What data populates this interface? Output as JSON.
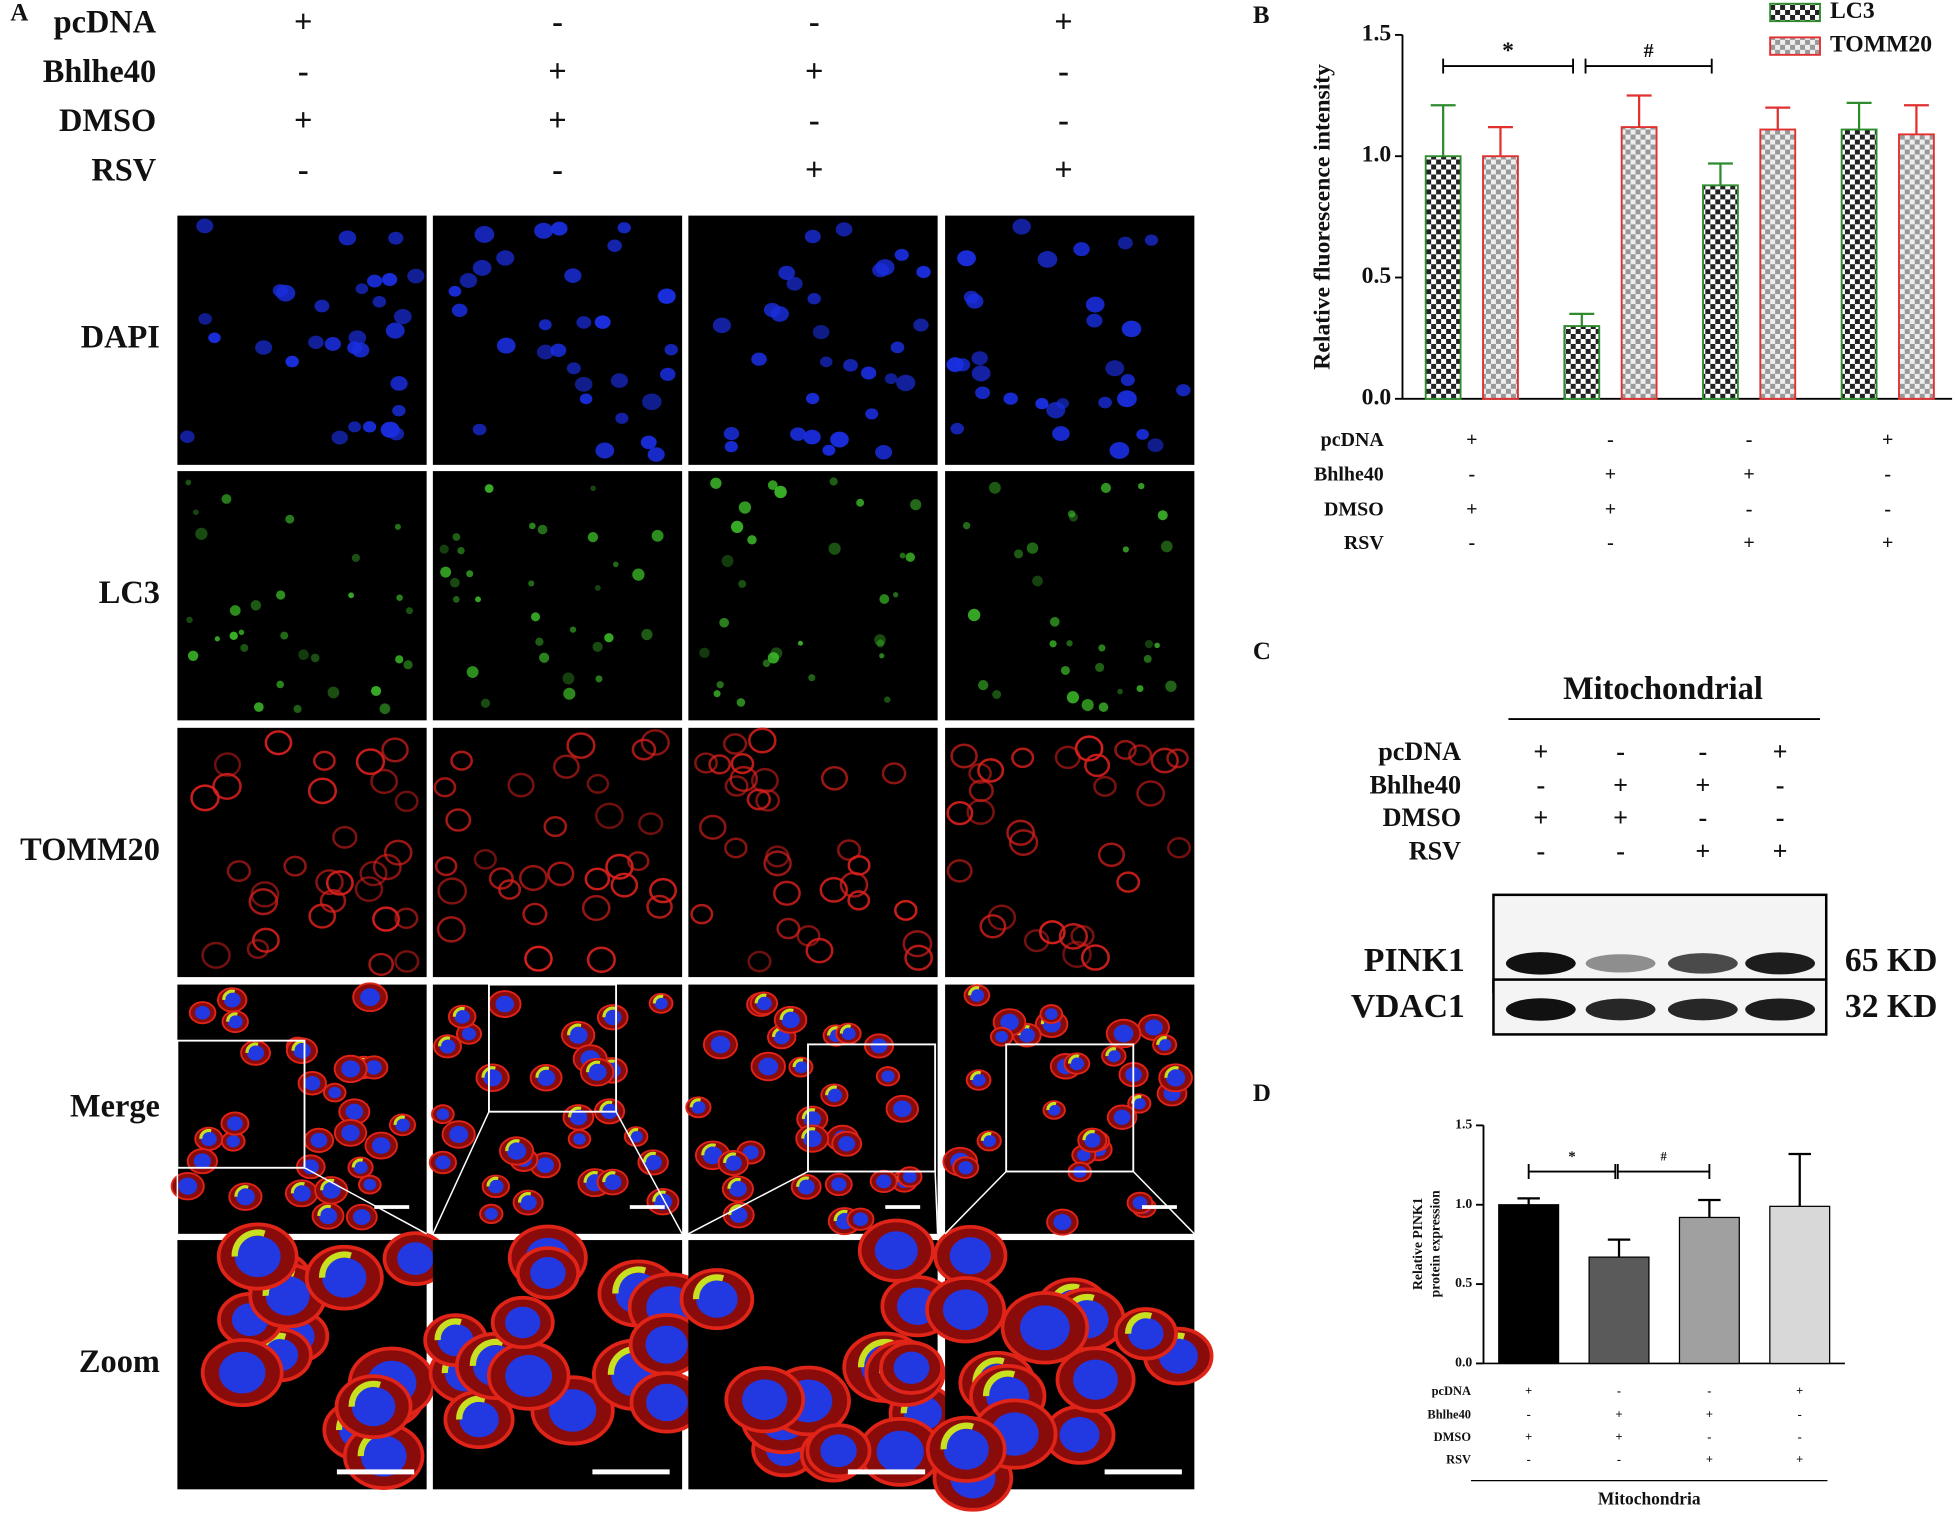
{
  "panel_a": {
    "label": "A",
    "conditions": [
      {
        "name": "pcDNA",
        "signs": [
          "+",
          "-",
          "-",
          "+"
        ]
      },
      {
        "name": "Bhlhe40",
        "signs": [
          "-",
          "+",
          "+",
          "-"
        ]
      },
      {
        "name": "DMSO",
        "signs": [
          "+",
          "+",
          "-",
          "-"
        ]
      },
      {
        "name": "RSV",
        "signs": [
          "-",
          "-",
          "+",
          "+"
        ]
      }
    ],
    "stains": [
      "DAPI",
      "LC3",
      "TOMM20",
      "Merge",
      "Zoom"
    ]
  },
  "chart_data": [
    {
      "type": "bar",
      "panel_label": "B",
      "ylabel": "Relative fluorescence intensity",
      "conditions": [
        {
          "name": "pcDNA",
          "signs": [
            "+",
            "-",
            "-",
            "+"
          ]
        },
        {
          "name": "Bhlhe40",
          "signs": [
            "-",
            "+",
            "+",
            "-"
          ]
        },
        {
          "name": "DMSO",
          "signs": [
            "+",
            "+",
            "-",
            "-"
          ]
        },
        {
          "name": "RSV",
          "signs": [
            "-",
            "-",
            "+",
            "+"
          ]
        }
      ],
      "series": [
        {
          "name": "LC3",
          "color": "#2e8b2e",
          "values": [
            1.0,
            0.3,
            0.88,
            1.11
          ],
          "errors": [
            0.21,
            0.05,
            0.09,
            0.11
          ]
        },
        {
          "name": "TOMM20",
          "color": "#e03030",
          "values": [
            1.0,
            1.12,
            1.11,
            1.09
          ],
          "errors": [
            0.12,
            0.13,
            0.09,
            0.12
          ]
        }
      ],
      "ylim": [
        0,
        1.5
      ],
      "yticks": [
        {
          "value": 0,
          "label": "0.0"
        },
        0.5,
        {
          "value": 1,
          "label": "1.0"
        },
        1.5
      ],
      "annotations": [
        "*",
        "#"
      ],
      "legend": "top-right"
    },
    {
      "type": "bar",
      "panel_label": "D",
      "ylabel": [
        "Relative PINK1",
        "protein expression"
      ],
      "xlabel": "Mitochondria",
      "conditions": [
        {
          "name": "pcDNA",
          "signs": [
            "+",
            "-",
            "-",
            "+"
          ]
        },
        {
          "name": "Bhlhe40",
          "signs": [
            "-",
            "+",
            "+",
            "-"
          ]
        },
        {
          "name": "DMSO",
          "signs": [
            "+",
            "+",
            "-",
            "-"
          ]
        },
        {
          "name": "RSV",
          "signs": [
            "-",
            "-",
            "+",
            "+"
          ]
        }
      ],
      "values": [
        1.0,
        0.67,
        0.92,
        0.99
      ],
      "errors": [
        0.04,
        0.11,
        0.11,
        0.33
      ],
      "colors": [
        "#000000",
        "#5a5a5a",
        "#a0a0a0",
        "#d8d8d8"
      ],
      "ylim": [
        0,
        1.5
      ],
      "yticks": [
        {
          "value": 0,
          "label": "0.0"
        },
        0.5,
        {
          "value": 1,
          "label": "1.0"
        },
        1.5
      ],
      "annotations": [
        "*",
        "#"
      ]
    }
  ],
  "panel_c": {
    "label": "C",
    "title": "Mitochondrial",
    "conditions": [
      {
        "name": "pcDNA",
        "signs": [
          "+",
          "-",
          "-",
          "+"
        ]
      },
      {
        "name": "Bhlhe40",
        "signs": [
          "-",
          "+",
          "+",
          "-"
        ]
      },
      {
        "name": "DMSO",
        "signs": [
          "+",
          "+",
          "-",
          "-"
        ]
      },
      {
        "name": "RSV",
        "signs": [
          "-",
          "-",
          "+",
          "+"
        ]
      }
    ],
    "blots": [
      {
        "protein": "PINK1",
        "size": "65 KD"
      },
      {
        "protein": "VDAC1",
        "size": "32 KD"
      }
    ]
  }
}
